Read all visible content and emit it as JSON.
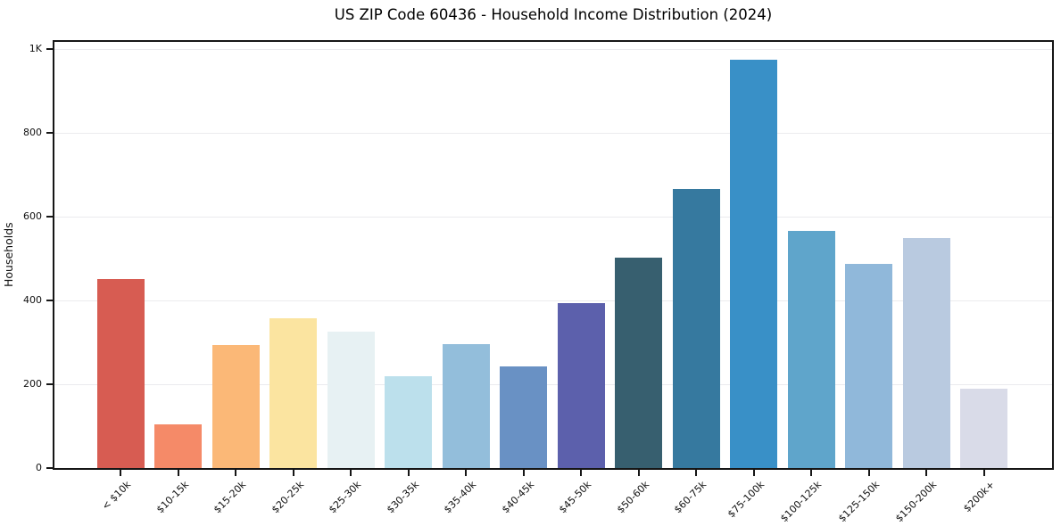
{
  "chart_data": {
    "type": "bar",
    "title": "US ZIP Code 60436 - Household Income Distribution (2024)",
    "xlabel": "",
    "ylabel": "Households",
    "categories": [
      "< $10k",
      "$10-15k",
      "$15-20k",
      "$20-25k",
      "$25-30k",
      "$30-35k",
      "$35-40k",
      "$40-45k",
      "$45-50k",
      "$50-60k",
      "$60-75k",
      "$75-100k",
      "$100-125k",
      "$125-150k",
      "$150-200k",
      "$200k+"
    ],
    "values": [
      452,
      105,
      294,
      358,
      325,
      219,
      295,
      242,
      394,
      502,
      666,
      975,
      566,
      487,
      548,
      189
    ],
    "bar_colors": [
      "#D75C52",
      "#F58A68",
      "#FBB877",
      "#FBE4A0",
      "#E7F1F3",
      "#BCE0EC",
      "#93BEDB",
      "#6991C4",
      "#5C60AC",
      "#375F6F",
      "#36799F",
      "#3990C7",
      "#5FA5CB",
      "#90B8DA",
      "#B9CAE0",
      "#D9DBE8"
    ],
    "ylim": [
      0,
      1025
    ],
    "ytick_values": [
      0,
      200,
      400,
      600,
      800,
      1000
    ],
    "ytick_labels": [
      "0",
      "200",
      "400",
      "600",
      "800",
      "1K"
    ],
    "x_tick_rotation_deg": 45,
    "grid": "horizontal",
    "legend": "none"
  },
  "colors": {
    "background": "#ffffff",
    "spine": "#161616",
    "gridline": "#ebebee",
    "tick_mark": "#161616",
    "tick_text": "#111111",
    "title_text": "#000000"
  }
}
